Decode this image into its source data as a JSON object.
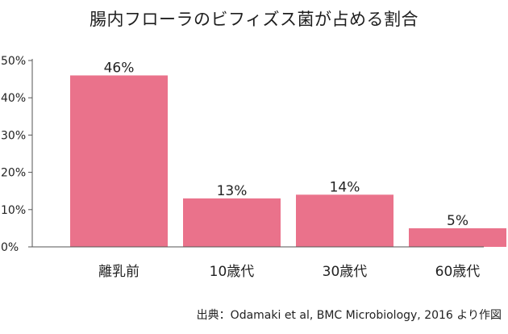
{
  "title": "腸内フローラのビフィズス菌が占める割合",
  "source": "出典：Odamaki et al, BMC Microbiology, 2016 より作図",
  "colors": {
    "bar": "#ea728b",
    "axis": "#555555",
    "text": "#222222"
  },
  "chart_data": {
    "type": "bar",
    "title": "腸内フローラのビフィズス菌が占める割合",
    "xlabel": "",
    "ylabel": "",
    "categories": [
      "離乳前",
      "10歳代",
      "30歳代",
      "60歳代"
    ],
    "values": [
      46,
      13,
      14,
      5
    ],
    "value_labels": [
      "46%",
      "13%",
      "14%",
      "5%"
    ],
    "yticks": [
      "0%",
      "10%",
      "20%",
      "30%",
      "40%",
      "50%"
    ],
    "ytick_values": [
      0,
      10,
      20,
      30,
      40,
      50
    ],
    "ylim": [
      0,
      50
    ],
    "grid": false,
    "legend": "none"
  }
}
